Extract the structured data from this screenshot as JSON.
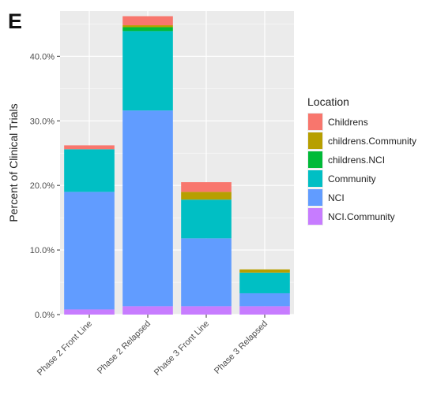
{
  "panel_label": "E",
  "chart_data": {
    "type": "bar",
    "stacked": true,
    "title": "",
    "xlabel": "",
    "ylabel": "Percent of Clinical Trials",
    "ylim": [
      0,
      47
    ],
    "yticks": [
      0,
      10,
      20,
      30,
      40
    ],
    "ytick_labels": [
      "0.0%",
      "10.0%",
      "20.0%",
      "30.0%",
      "40.0%"
    ],
    "grid": true,
    "categories": [
      "Phase 2 Front Line",
      "Phase 2 Relapsed",
      "Phase 3 Front Line",
      "Phase 3 Relapsed"
    ],
    "legend": {
      "title": "Location",
      "position": "right"
    },
    "series": [
      {
        "name": "NCI.Community",
        "color": "#c77cff",
        "values": [
          0.8,
          1.3,
          1.3,
          1.3
        ]
      },
      {
        "name": "NCI",
        "color": "#619cff",
        "values": [
          18.2,
          30.3,
          10.5,
          2.0
        ]
      },
      {
        "name": "Community",
        "color": "#00bfc4",
        "values": [
          6.6,
          12.3,
          6.0,
          3.2
        ]
      },
      {
        "name": "childrens.NCI",
        "color": "#00ba38",
        "values": [
          0.0,
          0.6,
          0.0,
          0.0
        ]
      },
      {
        "name": "childrens.Community",
        "color": "#b79f00",
        "values": [
          0.0,
          0.3,
          1.2,
          0.5
        ]
      },
      {
        "name": "Childrens",
        "color": "#f8766d",
        "values": [
          0.6,
          1.4,
          1.5,
          0.0
        ]
      }
    ],
    "legend_order": [
      "Childrens",
      "childrens.Community",
      "childrens.NCI",
      "Community",
      "NCI",
      "NCI.Community"
    ]
  },
  "colors": {
    "panel_background": "#ebebeb",
    "grid_major": "#ffffff"
  }
}
